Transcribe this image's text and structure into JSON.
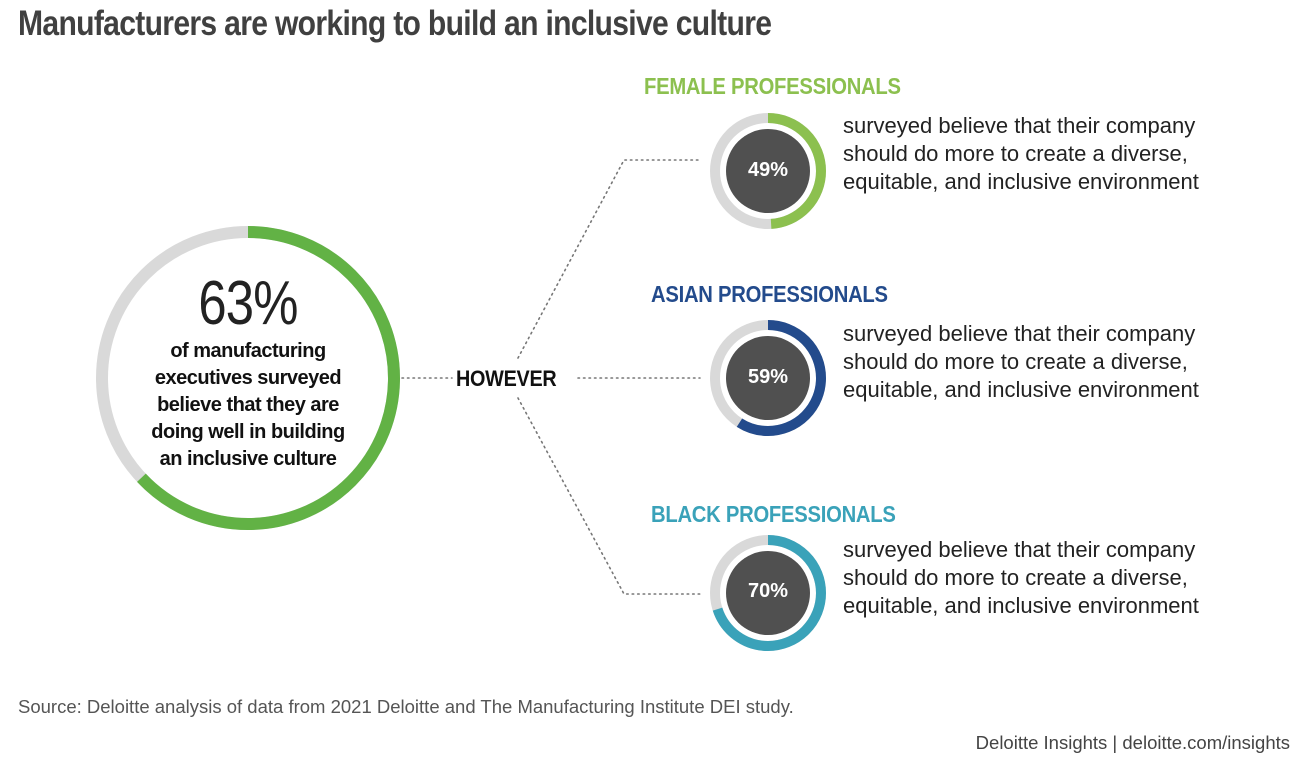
{
  "title": "Manufacturers are working to build an inclusive culture",
  "main_stat": {
    "value": "63%",
    "caption_lines": [
      "of manufacturing",
      "executives surveyed",
      "believe that they are",
      "doing well in building",
      "an inclusive culture"
    ]
  },
  "connector_label": "HOWEVER",
  "description": "surveyed believe that their company should do more to create a diverse, equitable, and inclusive environment",
  "colors": {
    "track": "#d9d9d9",
    "inner": "#505050",
    "main": "#62b245",
    "female": "#8cc04f",
    "asian": "#234b8c",
    "black": "#3aa2b9"
  },
  "chart_data": [
    {
      "type": "donut",
      "label": "of manufacturing executives surveyed believe that they are doing well in building an inclusive culture",
      "value": 63,
      "unit": "%"
    },
    {
      "type": "donut",
      "series": [
        {
          "name": "FEMALE PROFESSIONALS",
          "value": 49,
          "label": "49%"
        },
        {
          "name": "ASIAN PROFESSIONALS",
          "value": 59,
          "label": "59%"
        },
        {
          "name": "BLACK PROFESSIONALS",
          "value": 70,
          "label": "70%"
        }
      ],
      "unit": "%"
    }
  ],
  "source": "Source: Deloitte analysis of data from 2021 Deloitte and The Manufacturing Institute DEI study.",
  "footer": "Deloitte Insights | deloitte.com/insights"
}
